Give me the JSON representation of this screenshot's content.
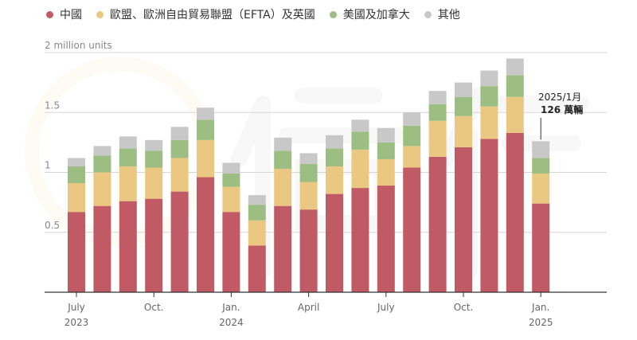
{
  "legend": [
    {
      "label": "中國",
      "color": "#c05a64"
    },
    {
      "label": "歐盟、歐洲自由貿易聯盟（EFTA）及英國",
      "color": "#ebc882"
    },
    {
      "label": "美國及加拿大",
      "color": "#9cbe82"
    },
    {
      "label": "其他",
      "color": "#c8c8c8"
    }
  ],
  "annotation": {
    "line1": "2025/1月",
    "line2": "126 萬輛"
  },
  "chart_data": {
    "type": "bar",
    "stacked": true,
    "unit": "million units",
    "categories": [
      "2023-07",
      "2023-08",
      "2023-09",
      "2023-10",
      "2023-11",
      "2023-12",
      "2024-01",
      "2024-02",
      "2024-03",
      "2024-04",
      "2024-05",
      "2024-06",
      "2024-07",
      "2024-08",
      "2024-09",
      "2024-10",
      "2024-11",
      "2024-12",
      "2025-01"
    ],
    "series": [
      {
        "name": "中國",
        "color": "#c05a64",
        "values": [
          0.67,
          0.72,
          0.76,
          0.78,
          0.84,
          0.96,
          0.67,
          0.39,
          0.72,
          0.69,
          0.82,
          0.87,
          0.89,
          1.04,
          1.13,
          1.21,
          1.28,
          1.33,
          0.74
        ]
      },
      {
        "name": "歐盟、歐洲自由貿易聯盟（EFTA）及英國",
        "color": "#ebc882",
        "values": [
          0.24,
          0.28,
          0.29,
          0.26,
          0.28,
          0.31,
          0.21,
          0.21,
          0.31,
          0.23,
          0.23,
          0.32,
          0.22,
          0.18,
          0.3,
          0.26,
          0.27,
          0.3,
          0.25
        ]
      },
      {
        "name": "美國及加拿大",
        "color": "#9cbe82",
        "values": [
          0.14,
          0.14,
          0.15,
          0.14,
          0.15,
          0.17,
          0.11,
          0.13,
          0.15,
          0.15,
          0.15,
          0.15,
          0.14,
          0.17,
          0.14,
          0.16,
          0.17,
          0.18,
          0.13
        ]
      },
      {
        "name": "其他",
        "color": "#c8c8c8",
        "values": [
          0.07,
          0.08,
          0.1,
          0.09,
          0.11,
          0.1,
          0.09,
          0.08,
          0.11,
          0.09,
          0.11,
          0.1,
          0.12,
          0.11,
          0.11,
          0.12,
          0.13,
          0.14,
          0.14
        ]
      }
    ],
    "yticks": [
      {
        "value": 0.5,
        "label": "0.5"
      },
      {
        "value": 1,
        "label": "1"
      },
      {
        "value": 1.5,
        "label": "1.5"
      },
      {
        "value": 2,
        "label": "2 million units"
      }
    ],
    "ylim": [
      0,
      2
    ],
    "xticks": [
      {
        "index": 0,
        "line1": "July",
        "line2": "2023"
      },
      {
        "index": 3,
        "line1": "Oct.",
        "line2": ""
      },
      {
        "index": 6,
        "line1": "Jan.",
        "line2": "2024"
      },
      {
        "index": 9,
        "line1": "April",
        "line2": ""
      },
      {
        "index": 12,
        "line1": "July",
        "line2": ""
      },
      {
        "index": 15,
        "line1": "Oct.",
        "line2": ""
      },
      {
        "index": 18,
        "line1": "Jan.",
        "line2": "2025"
      }
    ],
    "grid": true,
    "legend_position": "top"
  }
}
